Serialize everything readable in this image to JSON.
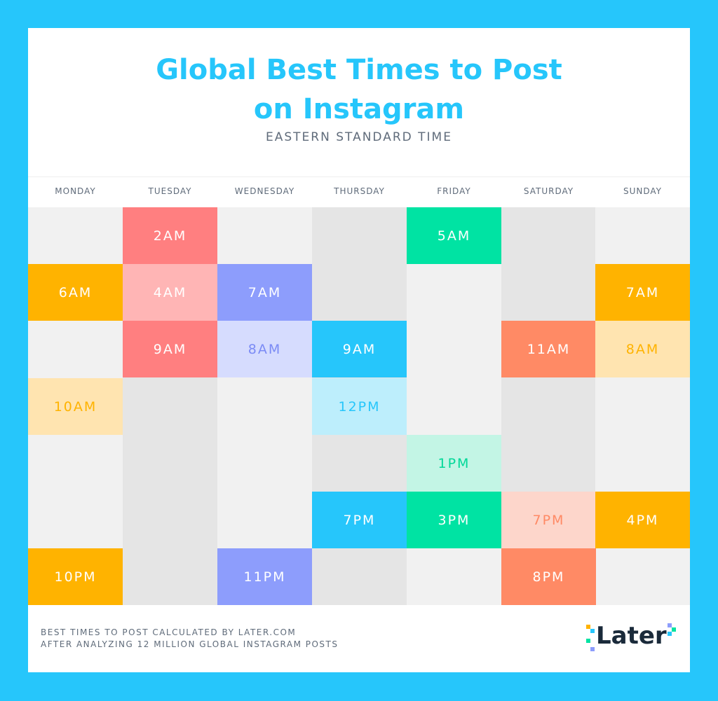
{
  "title": "Global Best Times to Post on Instagram",
  "subtitle": "EASTERN STANDARD TIME",
  "days": [
    {
      "name": "MONDAY",
      "times": [
        "6AM",
        "10AM",
        "10PM"
      ]
    },
    {
      "name": "TUESDAY",
      "times": [
        "2AM",
        "4AM",
        "9AM"
      ]
    },
    {
      "name": "WEDNESDAY",
      "times": [
        "7AM",
        "8AM",
        "11PM"
      ]
    },
    {
      "name": "THURSDAY",
      "times": [
        "9AM",
        "12PM",
        "7PM"
      ]
    },
    {
      "name": "FRIDAY",
      "times": [
        "5AM",
        "1PM",
        "3PM"
      ]
    },
    {
      "name": "SATURDAY",
      "times": [
        "11AM",
        "7PM",
        "8PM"
      ]
    },
    {
      "name": "SUNDAY",
      "times": [
        "7AM",
        "8AM",
        "4PM"
      ]
    }
  ],
  "footer": [
    "BEST TIMES TO POST  CALCULATED BY LATER.COM",
    "AFTER ANALYZING 12 MILLION GLOBAL INSTAGRAM POSTS"
  ],
  "logo": "Later"
}
